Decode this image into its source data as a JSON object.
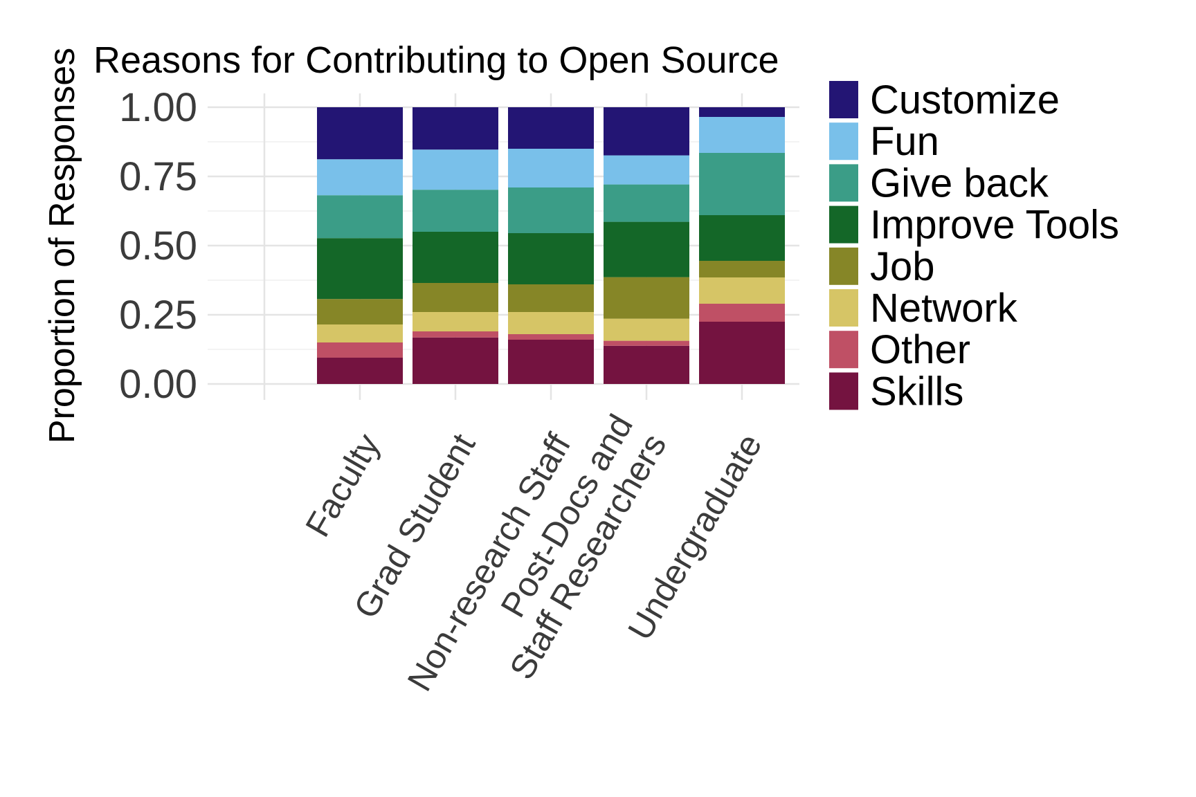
{
  "chart_data": {
    "type": "bar",
    "stacked": true,
    "title": "Reasons for Contributing to Open Source",
    "xlabel": "",
    "ylabel": "Proportion of Responses",
    "ylim": [
      0,
      1
    ],
    "yticks": [
      "0.00",
      "0.25",
      "0.50",
      "0.75",
      "1.00"
    ],
    "grid": true,
    "legend_position": "right",
    "categories": [
      "Faculty",
      "Grad Student",
      "Non-research Staff",
      "Post-Docs and\nStaff Researchers",
      "Undergraduate"
    ],
    "series": [
      {
        "name": "Skills",
        "color": "#741340",
        "values": [
          0.095,
          0.168,
          0.16,
          0.138,
          0.225
        ]
      },
      {
        "name": "Other",
        "color": "#bf5065",
        "values": [
          0.055,
          0.022,
          0.02,
          0.018,
          0.065
        ]
      },
      {
        "name": "Network",
        "color": "#d6c566",
        "values": [
          0.065,
          0.07,
          0.08,
          0.08,
          0.095
        ]
      },
      {
        "name": "Job",
        "color": "#868627",
        "values": [
          0.092,
          0.105,
          0.1,
          0.15,
          0.06
        ]
      },
      {
        "name": "Improve Tools",
        "color": "#146728",
        "values": [
          0.22,
          0.185,
          0.185,
          0.2,
          0.165
        ]
      },
      {
        "name": "Give back",
        "color": "#3b9d87",
        "values": [
          0.155,
          0.152,
          0.165,
          0.135,
          0.225
        ]
      },
      {
        "name": "Fun",
        "color": "#79c0ea",
        "values": [
          0.13,
          0.145,
          0.14,
          0.105,
          0.13
        ]
      },
      {
        "name": "Customize",
        "color": "#231574",
        "values": [
          0.188,
          0.153,
          0.15,
          0.174,
          0.035
        ]
      }
    ],
    "legend_order": [
      "Customize",
      "Fun",
      "Give back",
      "Improve Tools",
      "Job",
      "Network",
      "Other",
      "Skills"
    ]
  }
}
